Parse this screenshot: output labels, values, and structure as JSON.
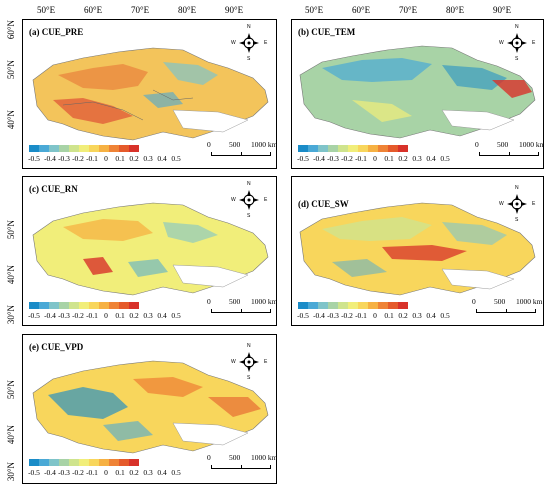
{
  "top_axis": [
    "50°E",
    "60°E",
    "70°E",
    "80°E",
    "90°E"
  ],
  "left_axis": [
    "60°N",
    "50°N",
    "40°N",
    "30°N"
  ],
  "panels": [
    {
      "title": "(a) CUE_PRE"
    },
    {
      "title": "(b) CUE_TEM"
    },
    {
      "title": "(c) CUE_RN"
    },
    {
      "title": "(d) CUE_SW"
    },
    {
      "title": "(e) CUE_VPD"
    }
  ],
  "compass": {
    "n": "N",
    "s": "S",
    "e": "E",
    "w": "W"
  },
  "legend": {
    "colors": [
      "#1a8cc8",
      "#4aa9d6",
      "#7fc4c9",
      "#a8d3a6",
      "#cfe48d",
      "#f1ee7a",
      "#f8d65c",
      "#f6b143",
      "#ef8336",
      "#e55a2b",
      "#d8322a"
    ],
    "ticks": [
      "-0.5",
      "-0.4",
      "-0.3",
      "-0.2",
      "-0.1",
      "0",
      "0.1",
      "0.2",
      "0.3",
      "0.4",
      "0.5"
    ]
  },
  "scalebar": {
    "labels": [
      "0",
      "500",
      "1000 km"
    ]
  }
}
